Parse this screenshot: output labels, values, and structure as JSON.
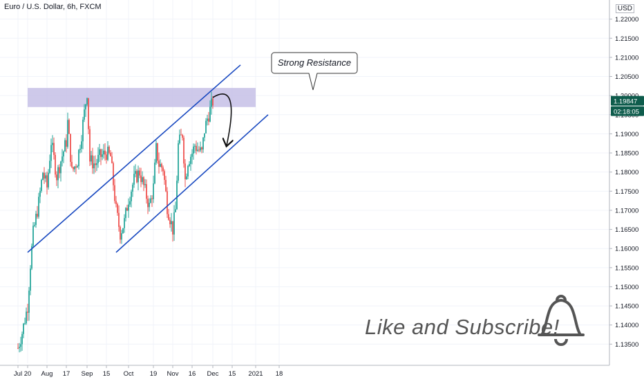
{
  "header": {
    "symbol_title": "Euro / U.S. Dollar, 6h, FXCM",
    "currency": "USD"
  },
  "annotations": {
    "callout": "Strong Resistance",
    "cta": "Like and Subscribe!",
    "bell_icon": "bell-icon"
  },
  "price_tags": {
    "last_price": "1.19847",
    "countdown": "02:18:05"
  },
  "colors": {
    "up": "#26a69a",
    "down": "#ef5350",
    "channel": "#1848c0",
    "zone": "#c5bfe6",
    "grid": "#f0f3fa",
    "price_tag": "#0e5c4c"
  },
  "chart_data": {
    "type": "candlestick",
    "instrument": "Euro / U.S. Dollar",
    "timeframe": "6h",
    "source": "FXCM",
    "ylim": [
      1.13,
      1.225
    ],
    "y_ticks": [
      "1.13500",
      "1.14000",
      "1.14500",
      "1.15000",
      "1.15500",
      "1.16000",
      "1.16500",
      "1.17000",
      "1.17500",
      "1.18000",
      "1.18500",
      "1.19000",
      "1.19500",
      "1.20000",
      "1.20500",
      "1.21000",
      "1.21500",
      "1.22000"
    ],
    "x_ticks": [
      "Jul",
      "20",
      "Aug",
      "17",
      "Sep",
      "15",
      "Oct",
      "19",
      "Nov",
      "16",
      "Dec",
      "15",
      "2021",
      "18"
    ],
    "x_tick_dates": [
      "2020-07-13",
      "2020-07-20",
      "2020-08-03",
      "2020-08-17",
      "2020-09-01",
      "2020-09-15",
      "2020-10-01",
      "2020-10-19",
      "2020-11-02",
      "2020-11-16",
      "2020-12-01",
      "2020-12-15",
      "2021-01-01",
      "2021-01-18"
    ],
    "close_path": [
      [
        "2020-07-13",
        1.134
      ],
      [
        "2020-07-16",
        1.138
      ],
      [
        "2020-07-20",
        1.145
      ],
      [
        "2020-07-22",
        1.156
      ],
      [
        "2020-07-24",
        1.164
      ],
      [
        "2020-07-28",
        1.172
      ],
      [
        "2020-07-31",
        1.18
      ],
      [
        "2020-08-03",
        1.176
      ],
      [
        "2020-08-06",
        1.188
      ],
      [
        "2020-08-10",
        1.179
      ],
      [
        "2020-08-13",
        1.183
      ],
      [
        "2020-08-17",
        1.188
      ],
      [
        "2020-08-18",
        1.193
      ],
      [
        "2020-08-21",
        1.18
      ],
      [
        "2020-08-25",
        1.183
      ],
      [
        "2020-08-28",
        1.19
      ],
      [
        "2020-09-01",
        1.201
      ],
      [
        "2020-09-03",
        1.183
      ],
      [
        "2020-09-07",
        1.182
      ],
      [
        "2020-09-10",
        1.184
      ],
      [
        "2020-09-15",
        1.185
      ],
      [
        "2020-09-18",
        1.184
      ],
      [
        "2020-09-22",
        1.17
      ],
      [
        "2020-09-25",
        1.164
      ],
      [
        "2020-09-28",
        1.167
      ],
      [
        "2020-10-01",
        1.173
      ],
      [
        "2020-10-05",
        1.178
      ],
      [
        "2020-10-09",
        1.18
      ],
      [
        "2020-10-13",
        1.175
      ],
      [
        "2020-10-16",
        1.171
      ],
      [
        "2020-10-19",
        1.176
      ],
      [
        "2020-10-21",
        1.186
      ],
      [
        "2020-10-23",
        1.182
      ],
      [
        "2020-10-26",
        1.181
      ],
      [
        "2020-10-29",
        1.171
      ],
      [
        "2020-11-02",
        1.165
      ],
      [
        "2020-11-04",
        1.17
      ],
      [
        "2020-11-06",
        1.187
      ],
      [
        "2020-11-09",
        1.19
      ],
      [
        "2020-11-11",
        1.178
      ],
      [
        "2020-11-13",
        1.183
      ],
      [
        "2020-11-16",
        1.185
      ],
      [
        "2020-11-18",
        1.187
      ],
      [
        "2020-11-20",
        1.186
      ],
      [
        "2020-11-23",
        1.185
      ],
      [
        "2020-11-25",
        1.191
      ],
      [
        "2020-11-27",
        1.194
      ],
      [
        "2020-12-01",
        1.1985
      ]
    ],
    "resistance_zone": {
      "from": "2020-07-20",
      "to": "2021-01-01",
      "low": 1.197,
      "high": 1.202
    },
    "channel_upper": [
      [
        "2020-07-20",
        1.159
      ],
      [
        "2020-12-21",
        1.208
      ]
    ],
    "channel_lower": [
      [
        "2020-09-22",
        1.159
      ],
      [
        "2021-01-10",
        1.195
      ]
    ],
    "projection_arrow": [
      [
        "2020-12-01",
        1.1995
      ],
      [
        "2020-12-06",
        1.1985
      ],
      [
        "2020-12-11",
        1.187
      ]
    ],
    "last_price": 1.19847
  }
}
